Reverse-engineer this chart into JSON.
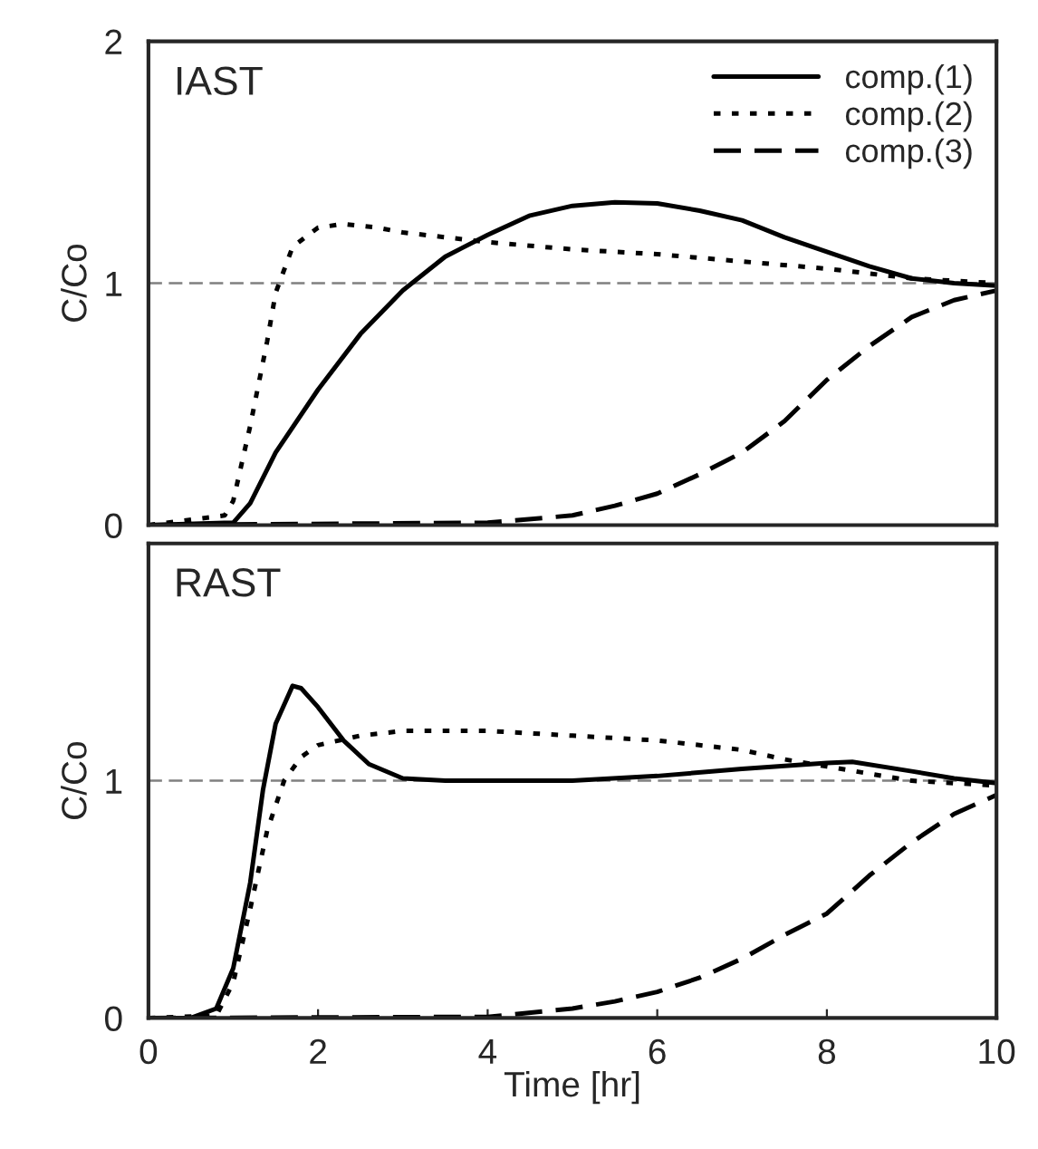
{
  "chart_data": [
    {
      "type": "line",
      "annotations": [
        "IAST"
      ],
      "ylabel": "C/Co",
      "xlim": [
        0,
        10
      ],
      "ylim": [
        0,
        2
      ],
      "yticks": [
        0,
        1,
        2
      ],
      "tick_labels": "y",
      "legend": "top right",
      "grid": false,
      "ref_lines": [
        {
          "axis": "y",
          "value": 1,
          "color": "#808080",
          "line_style": "dashed"
        }
      ],
      "series": [
        {
          "name": "comp.(1)",
          "color": "#000000",
          "line_style": "solid",
          "x": [
            0,
            1,
            1.2,
            1.5,
            2,
            2.5,
            3,
            3.5,
            4,
            4.5,
            5,
            5.5,
            6,
            6.5,
            7,
            7.5,
            8,
            8.5,
            9,
            9.5,
            10
          ],
          "values": [
            0,
            0.01,
            0.09,
            0.3,
            0.56,
            0.79,
            0.97,
            1.11,
            1.2,
            1.28,
            1.32,
            1.335,
            1.33,
            1.3,
            1.26,
            1.19,
            1.13,
            1.07,
            1.02,
            1.0,
            0.99
          ]
        },
        {
          "name": "comp.(2)",
          "color": "#000000",
          "line_style": "dotted",
          "x": [
            0,
            0.9,
            1,
            1.2,
            1.4,
            1.5,
            1.7,
            2,
            2.3,
            2.7,
            3,
            4,
            5,
            6,
            7,
            8,
            9,
            10
          ],
          "values": [
            0,
            0.04,
            0.1,
            0.41,
            0.76,
            0.96,
            1.15,
            1.23,
            1.245,
            1.23,
            1.21,
            1.17,
            1.14,
            1.12,
            1.09,
            1.06,
            1.02,
            1.0
          ]
        },
        {
          "name": "comp.(3)",
          "color": "#000000",
          "line_style": "dashed",
          "x": [
            0,
            4,
            5,
            5.5,
            6,
            6.5,
            7,
            7.5,
            8,
            8.5,
            9,
            9.5,
            10
          ],
          "values": [
            0,
            0.01,
            0.04,
            0.08,
            0.13,
            0.21,
            0.3,
            0.43,
            0.6,
            0.74,
            0.86,
            0.93,
            0.97
          ]
        }
      ]
    },
    {
      "type": "line",
      "annotations": [
        "RAST"
      ],
      "ylabel": "C/Co",
      "xlabel": "Time [hr]",
      "xlim": [
        0,
        10
      ],
      "xticks": [
        0,
        2,
        4,
        6,
        8,
        10
      ],
      "ylim": [
        0,
        2
      ],
      "yticks": [
        0,
        1
      ],
      "grid": false,
      "ref_lines": [
        {
          "axis": "y",
          "value": 1,
          "color": "#808080",
          "line_style": "dashed"
        }
      ],
      "series": [
        {
          "color": "#000000",
          "line_style": "solid",
          "x": [
            0,
            0.5,
            0.8,
            1,
            1.2,
            1.35,
            1.5,
            1.7,
            1.8,
            2,
            2.3,
            2.6,
            3,
            3.5,
            4,
            5,
            6,
            7,
            8,
            8.3,
            9,
            9.5,
            10
          ],
          "values": [
            0,
            0,
            0.04,
            0.21,
            0.57,
            0.96,
            1.24,
            1.4,
            1.39,
            1.31,
            1.17,
            1.07,
            1.01,
            1.0,
            1.0,
            1.0,
            1.02,
            1.05,
            1.075,
            1.08,
            1.04,
            1.01,
            0.99
          ]
        },
        {
          "color": "#000000",
          "line_style": "dotted",
          "x": [
            0,
            0.8,
            1,
            1.2,
            1.4,
            1.6,
            1.8,
            2,
            2.5,
            3,
            3.5,
            4,
            5,
            6,
            7,
            7.5,
            8,
            8.5,
            9,
            10
          ],
          "values": [
            0,
            0.01,
            0.15,
            0.46,
            0.79,
            1.0,
            1.1,
            1.15,
            1.19,
            1.21,
            1.21,
            1.21,
            1.19,
            1.17,
            1.13,
            1.09,
            1.06,
            1.03,
            1.0,
            0.98
          ]
        },
        {
          "color": "#000000",
          "line_style": "dashed",
          "x": [
            0,
            4,
            5,
            5.5,
            6,
            6.5,
            7,
            7.5,
            8,
            8.5,
            9,
            9.5,
            10
          ],
          "values": [
            0,
            0.005,
            0.04,
            0.07,
            0.11,
            0.17,
            0.25,
            0.35,
            0.44,
            0.6,
            0.74,
            0.86,
            0.94
          ]
        }
      ]
    }
  ]
}
